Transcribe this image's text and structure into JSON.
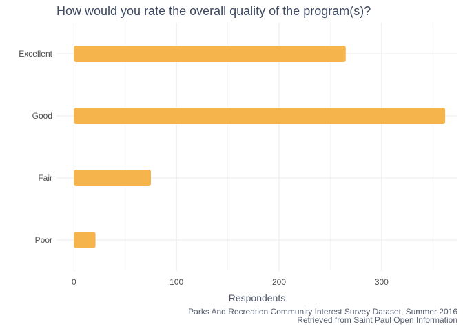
{
  "chart_data": {
    "type": "bar",
    "orientation": "horizontal",
    "title": "How would you rate the overall quality of the program(s)?",
    "xlabel": "Respondents",
    "ylabel": "",
    "categories": [
      "Excellent",
      "Good",
      "Fair",
      "Poor"
    ],
    "values": [
      265,
      362,
      75,
      21
    ],
    "xlim": [
      -17,
      374
    ],
    "x_ticks": [
      0,
      100,
      200,
      300
    ],
    "grid": true,
    "bar_color": "#f5b44c",
    "caption": [
      "Parks And Recreation Community Interest Survey Dataset, Summer 2016",
      "Retrieved from Saint Paul Open Information"
    ]
  }
}
